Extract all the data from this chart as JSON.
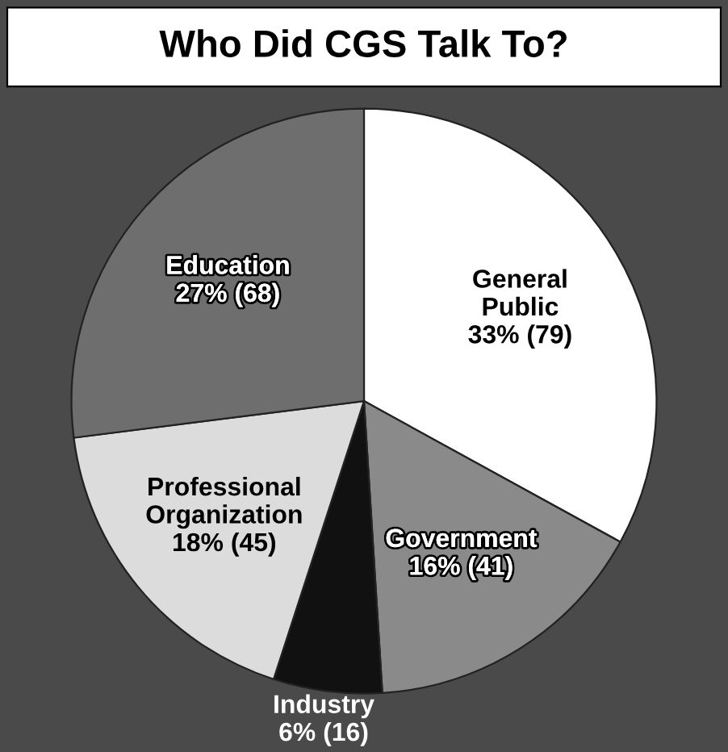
{
  "chart_data": {
    "type": "pie",
    "title": "Who Did CGS Talk To?",
    "categories": [
      "General Public",
      "Government",
      "Industry",
      "Professional Organization",
      "Education"
    ],
    "values": [
      33,
      16,
      6,
      18,
      27
    ],
    "value_labels": [
      "33% (79)",
      "16% (41)",
      "6% (16)",
      "18% (45)",
      "27% (68)"
    ],
    "colors": [
      "#ffffff",
      "#8a8a8a",
      "#111111",
      "#dcdcdc",
      "#6e6e6e"
    ],
    "legend": false
  }
}
